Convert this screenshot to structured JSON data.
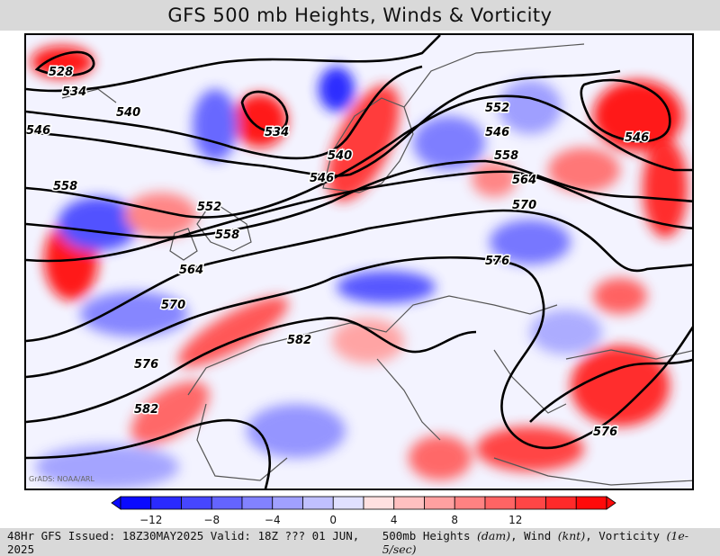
{
  "title": "GFS 500 mb Heights, Winds & Vorticity",
  "credit": "GrADS: NOAA/ARL",
  "footer": {
    "issued": "48Hr GFS Issued: 18Z30MAY2025 Valid: 18Z ??? 01 JUN, 2025",
    "fields_prefix": "500mb Heights ",
    "heights_unit": "(dam)",
    "wind_text": ", Wind ",
    "wind_unit": "(knt)",
    "vort_text": ", Vorticity ",
    "vort_unit": "(1e-5/sec)"
  },
  "colorbar": {
    "tick_labels": [
      "−12",
      "−8",
      "−4",
      "0",
      "4",
      "8",
      "12"
    ],
    "colors": [
      "#0a0aff",
      "#2a2aff",
      "#4646ff",
      "#6464ff",
      "#8282ff",
      "#a0a0ff",
      "#c0c0ff",
      "#e0e0ff",
      "#ffe0e0",
      "#ffc0c0",
      "#ffa0a0",
      "#ff8282",
      "#ff6464",
      "#ff4646",
      "#ff2a2a",
      "#ff0a0a"
    ]
  },
  "contour_labels": [
    "528",
    "534",
    "534",
    "540",
    "540",
    "546",
    "546",
    "546",
    "546",
    "552",
    "552",
    "558",
    "558",
    "558",
    "564",
    "564",
    "570",
    "570",
    "576",
    "576",
    "576",
    "582",
    "582"
  ]
}
